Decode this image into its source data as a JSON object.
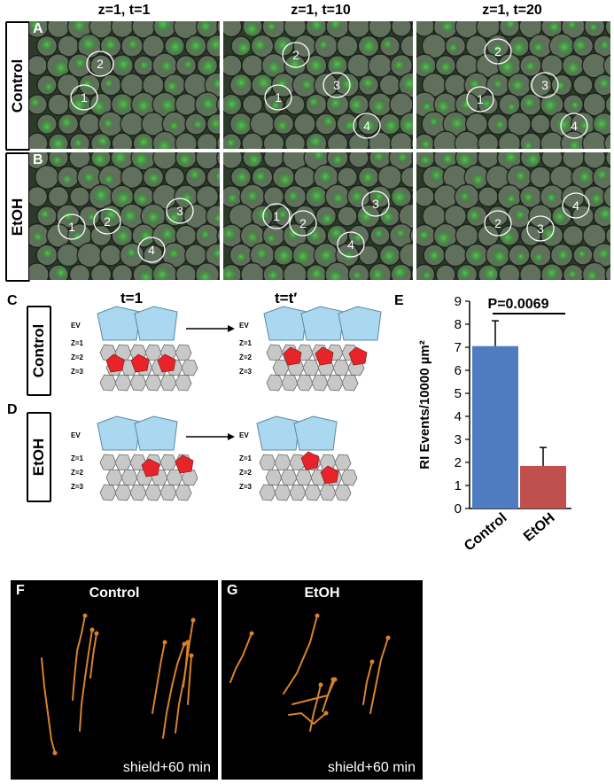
{
  "panel_letters": {
    "a": "A",
    "b": "B",
    "c": "C",
    "d": "D",
    "e": "E",
    "f": "F",
    "g": "G"
  },
  "column_headers": [
    "z=1, t=1",
    "z=1, t=10",
    "z=1, t=20"
  ],
  "row_labels": {
    "control": "Control",
    "etoh": "EtOH"
  },
  "micro_panels": [
    {
      "row": "control",
      "cells": [
        "1",
        "2"
      ]
    },
    {
      "row": "control",
      "cells": [
        "1",
        "2",
        "3",
        "4"
      ]
    },
    {
      "row": "control",
      "cells": [
        "1",
        "2",
        "3",
        "4"
      ]
    },
    {
      "row": "etoh",
      "cells": [
        "1",
        "2",
        "3",
        "4"
      ]
    },
    {
      "row": "etoh",
      "cells": [
        "1",
        "2",
        "3",
        "4"
      ]
    },
    {
      "row": "etoh",
      "cells": [
        "2",
        "3",
        "4"
      ]
    }
  ],
  "schematic": {
    "t1_label": "t=1",
    "tprime_label": "t=t′",
    "ev_label": "EV",
    "z_labels": [
      "Z=1",
      "Z=2",
      "Z=3"
    ],
    "control_label": "Control",
    "etoh_label": "EtOH",
    "ev_color": "#a9d8f0",
    "cell_color": "#c8c8c8",
    "ri_color": "#e8232a"
  },
  "chart_data": {
    "type": "bar",
    "categories": [
      "Control",
      "EtOH"
    ],
    "values": [
      7.05,
      1.85
    ],
    "errors": [
      1.1,
      0.8
    ],
    "colors": [
      "#4f7cc0",
      "#c0504d"
    ],
    "ylabel": "RI Events/10000 µm²",
    "ylim": [
      0,
      9
    ],
    "yticks": [
      "0",
      "1",
      "2",
      "3",
      "4",
      "5",
      "6",
      "7",
      "8",
      "9"
    ],
    "annotation": "P=0.0069"
  },
  "tracks": {
    "control_title": "Control",
    "etoh_title": "EtOH",
    "caption": "shield+60 min",
    "track_color": "#d9822b"
  }
}
